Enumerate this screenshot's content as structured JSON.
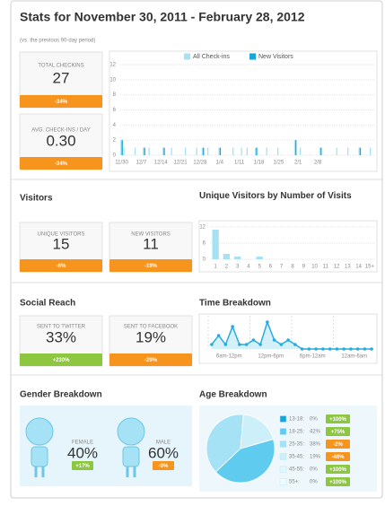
{
  "header": {
    "title": "Stats for November 30, 2011 - February 28, 2012",
    "subtitle": "(vs. the previous 90-day period)"
  },
  "checkins": {
    "stats": [
      {
        "label": "TOTAL CHECKINS",
        "value": "27",
        "change": "-34%"
      },
      {
        "label": "AVG. CHECK-INS / DAY",
        "value": "0.30",
        "change": "-34%"
      }
    ]
  },
  "visitors": {
    "title": "Visitors",
    "stats": [
      {
        "label": "UNIQUE VISITORS",
        "value": "15",
        "change": "-6%"
      },
      {
        "label": "NEW VISITORS",
        "value": "11",
        "change": "-19%"
      }
    ]
  },
  "social": {
    "title": "Social Reach",
    "stats": [
      {
        "label": "SENT TO TWITTER",
        "value": "33%",
        "change": "+230%"
      },
      {
        "label": "SENT TO FACEBOOK",
        "value": "19%",
        "change": "-29%"
      }
    ]
  },
  "gender": {
    "title": "Gender Breakdown",
    "items": [
      {
        "label": "FEMALE",
        "value": "40%",
        "change": "+17%"
      },
      {
        "label": "MALE",
        "value": "60%",
        "change": "-9%"
      }
    ]
  },
  "chart_data": [
    {
      "type": "bar",
      "categories": [
        "11/30",
        null,
        null,
        null,
        null,
        null,
        null,
        "12/7",
        null,
        null,
        null,
        null,
        null,
        null,
        "12/14",
        null,
        null,
        null,
        null,
        null,
        null,
        "12/21",
        null,
        null,
        null,
        null,
        null,
        null,
        "12/28",
        null,
        null,
        null,
        null,
        null,
        null,
        "1/4",
        null,
        null,
        null,
        null,
        null,
        null,
        "1/11",
        null,
        null,
        null,
        null,
        null,
        null,
        "1/18",
        null,
        null,
        null,
        null,
        null,
        null,
        "1/25",
        null,
        null,
        null,
        null,
        null,
        null,
        "2/1",
        null,
        null,
        null,
        null,
        null,
        null,
        "2/8",
        null,
        null,
        null,
        null,
        null,
        null,
        null,
        null,
        null,
        null,
        null,
        null,
        null,
        null,
        null,
        null,
        null,
        null,
        null,
        null
      ],
      "series": [
        {
          "name": "All Check-ins",
          "color": "#a5e2f5",
          "values": [
            2,
            1,
            0,
            0,
            0,
            1,
            0,
            0,
            1,
            0,
            1,
            0,
            0,
            0,
            0,
            1,
            0,
            0,
            1,
            0,
            0,
            0,
            0,
            1,
            0,
            0,
            0,
            1,
            0,
            1,
            0,
            1,
            0,
            0,
            0,
            1,
            0,
            0,
            0,
            0,
            1,
            0,
            0,
            1,
            0,
            1,
            0,
            0,
            1,
            0,
            0,
            0,
            1,
            0,
            0,
            0,
            1,
            0,
            0,
            0,
            0,
            0,
            2,
            0,
            1,
            0,
            0,
            0,
            0,
            0,
            0,
            1,
            0,
            0,
            0,
            0,
            0,
            1,
            0,
            0,
            0,
            1,
            0,
            0,
            0,
            1,
            0,
            0,
            0,
            1,
            0
          ]
        },
        {
          "name": "New Visitors",
          "color": "#1aa5d8",
          "values": [
            2,
            0,
            0,
            0,
            0,
            0,
            0,
            0,
            1,
            0,
            0,
            0,
            0,
            0,
            0,
            1,
            0,
            0,
            0,
            0,
            0,
            0,
            0,
            0,
            0,
            0,
            0,
            0,
            0,
            1,
            0,
            0,
            0,
            0,
            0,
            1,
            0,
            0,
            0,
            0,
            0,
            0,
            0,
            0,
            0,
            0,
            0,
            0,
            1,
            0,
            0,
            0,
            0,
            0,
            0,
            0,
            0,
            0,
            0,
            0,
            0,
            0,
            2,
            0,
            0,
            0,
            0,
            0,
            0,
            0,
            0,
            1,
            0,
            0,
            0,
            0,
            0,
            0,
            0,
            0,
            0,
            0,
            0,
            0,
            0,
            1,
            0,
            0,
            0,
            0,
            0
          ]
        }
      ],
      "ylim": [
        0,
        12
      ],
      "yticks": [
        0,
        2,
        4,
        6,
        8,
        10,
        12
      ],
      "grid": true
    },
    {
      "type": "bar",
      "title": "Unique Visitors by Number of Visits",
      "categories": [
        "1",
        "2",
        "3",
        "4",
        "5",
        "6",
        "7",
        "8",
        "9",
        "10",
        "11",
        "12",
        "13",
        "14",
        "15+"
      ],
      "values": [
        11,
        2,
        1,
        0,
        1,
        0,
        0,
        0,
        0,
        0,
        0,
        0,
        0,
        0,
        0
      ],
      "color": "#a5e2f5",
      "ylim": [
        0,
        12
      ],
      "yticks": [
        0,
        6,
        12
      ],
      "grid": true
    },
    {
      "type": "line",
      "title": "Time Breakdown",
      "bands": [
        "6am-12pm",
        "12pm-6pm",
        "6pm-12am",
        "12am-6am"
      ],
      "values": [
        1,
        3,
        1,
        5,
        1,
        1,
        2,
        1,
        6,
        2,
        1,
        2,
        1,
        0,
        0,
        0,
        0,
        0,
        0,
        0,
        0,
        0,
        0,
        0
      ],
      "ylim": [
        0,
        7
      ],
      "color": "#29abe2"
    },
    {
      "type": "pie",
      "title": "Age Breakdown",
      "categories": [
        "13-18:",
        "18-25:",
        "25-35:",
        "35-45:",
        "45-55:",
        "55+:"
      ],
      "values": [
        0,
        42,
        38,
        19,
        0,
        0
      ],
      "value_labels": [
        "0%",
        "42%",
        "38%",
        "19%",
        "0%",
        "0%"
      ],
      "changes": [
        "+100%",
        "+75%",
        "-2%",
        "-46%",
        "+100%",
        "+100%"
      ],
      "colors": [
        "#1aa5d8",
        "#5fcbee",
        "#a5e2f5",
        "#cdeffa",
        "#e3f6fc",
        "#f2fbfe"
      ]
    }
  ]
}
